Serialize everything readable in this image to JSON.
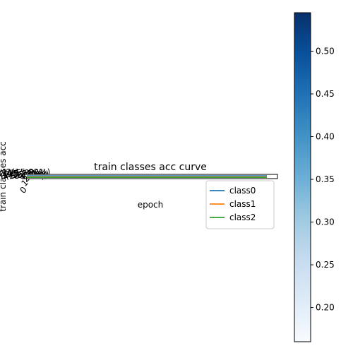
{
  "chart_data": {
    "type": "line",
    "title": "train classes acc curve",
    "xlabel": "epoch",
    "ylabel": "train classes acc",
    "x_tick_labels": [
      "0",
      "1",
      "2"
    ],
    "overlapping_labels": [
      "0(15.82%)",
      "1(15.82%)",
      "2(15.82%)",
      "0(15.82%)",
      "1(15.82%)",
      "2(15.82%)"
    ],
    "series": [
      {
        "name": "class0",
        "color": "#1f77b4"
      },
      {
        "name": "class1",
        "color": "#ff7f0e"
      },
      {
        "name": "class2",
        "color": "#2ca02c"
      }
    ],
    "legend": {
      "placement": "right",
      "entries": [
        "class0",
        "class1",
        "class2"
      ]
    },
    "colorbar": {
      "colormap": "Blues",
      "range": [
        0.16,
        0.545
      ],
      "ticks": [
        "0.20",
        "0.25",
        "0.30",
        "0.35",
        "0.40",
        "0.45",
        "0.50"
      ],
      "tick_values": [
        0.2,
        0.25,
        0.3,
        0.35,
        0.4,
        0.45,
        0.5
      ]
    },
    "grid": false
  }
}
